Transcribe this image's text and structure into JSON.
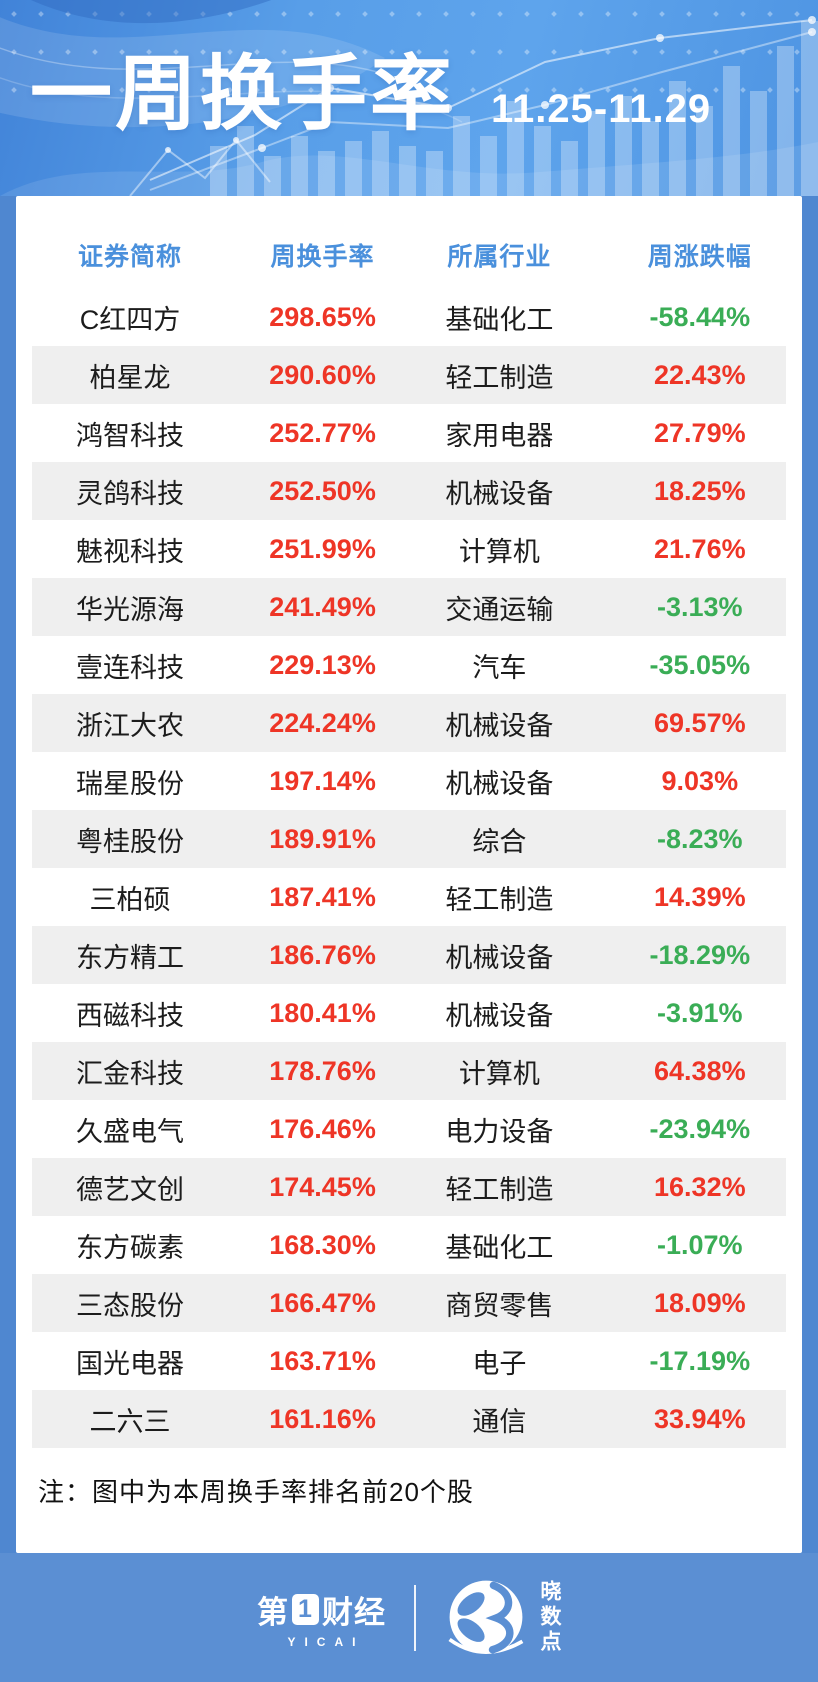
{
  "page": {
    "title": "一周换手率",
    "date_range": "11.25-11.29",
    "note": "注：图中为本周换手率排名前20个股"
  },
  "chart_data": {
    "type": "table",
    "title": "一周换手率",
    "subtitle": "11.25-11.29",
    "columns": [
      "证券简称",
      "周换手率",
      "所属行业",
      "周涨跌幅"
    ],
    "rows": [
      {
        "name": "C红四方",
        "turnover": "298.65%",
        "industry": "基础化工",
        "change": "-58.44%"
      },
      {
        "name": "柏星龙",
        "turnover": "290.60%",
        "industry": "轻工制造",
        "change": "22.43%"
      },
      {
        "name": "鸿智科技",
        "turnover": "252.77%",
        "industry": "家用电器",
        "change": "27.79%"
      },
      {
        "name": "灵鸽科技",
        "turnover": "252.50%",
        "industry": "机械设备",
        "change": "18.25%"
      },
      {
        "name": "魅视科技",
        "turnover": "251.99%",
        "industry": "计算机",
        "change": "21.76%"
      },
      {
        "name": "华光源海",
        "turnover": "241.49%",
        "industry": "交通运输",
        "change": "-3.13%"
      },
      {
        "name": "壹连科技",
        "turnover": "229.13%",
        "industry": "汽车",
        "change": "-35.05%"
      },
      {
        "name": "浙江大农",
        "turnover": "224.24%",
        "industry": "机械设备",
        "change": "69.57%"
      },
      {
        "name": "瑞星股份",
        "turnover": "197.14%",
        "industry": "机械设备",
        "change": "9.03%"
      },
      {
        "name": "粤桂股份",
        "turnover": "189.91%",
        "industry": "综合",
        "change": "-8.23%"
      },
      {
        "name": "三柏硕",
        "turnover": "187.41%",
        "industry": "轻工制造",
        "change": "14.39%"
      },
      {
        "name": "东方精工",
        "turnover": "186.76%",
        "industry": "机械设备",
        "change": "-18.29%"
      },
      {
        "name": "西磁科技",
        "turnover": "180.41%",
        "industry": "机械设备",
        "change": "-3.91%"
      },
      {
        "name": "汇金科技",
        "turnover": "178.76%",
        "industry": "计算机",
        "change": "64.38%"
      },
      {
        "name": "久盛电气",
        "turnover": "176.46%",
        "industry": "电力设备",
        "change": "-23.94%"
      },
      {
        "name": "德艺文创",
        "turnover": "174.45%",
        "industry": "轻工制造",
        "change": "16.32%"
      },
      {
        "name": "东方碳素",
        "turnover": "168.30%",
        "industry": "基础化工",
        "change": "-1.07%"
      },
      {
        "name": "三态股份",
        "turnover": "166.47%",
        "industry": "商贸零售",
        "change": "18.09%"
      },
      {
        "name": "国光电器",
        "turnover": "163.71%",
        "industry": "电子",
        "change": "-17.19%"
      },
      {
        "name": "二六三",
        "turnover": "161.16%",
        "industry": "通信",
        "change": "33.94%"
      }
    ]
  },
  "footer": {
    "brand_left_pre": "第",
    "brand_left_logo": "1",
    "brand_left_post": "财经",
    "brand_left_sub": "YICAI",
    "brand_right": "晓数点"
  },
  "colors": {
    "up_red": "#ee3526",
    "down_green": "#3aad56",
    "header_text_blue": "#4a90dc",
    "stripe_gray": "#efefef",
    "frame_blue": "#4f87d0",
    "footer_blue": "#5b8fd3"
  }
}
